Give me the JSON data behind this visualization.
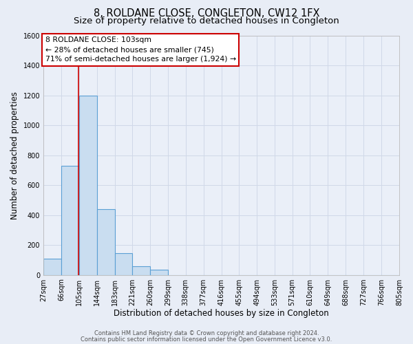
{
  "title": "8, ROLDANE CLOSE, CONGLETON, CW12 1FX",
  "subtitle": "Size of property relative to detached houses in Congleton",
  "xlabel": "Distribution of detached houses by size in Congleton",
  "ylabel": "Number of detached properties",
  "bin_edges": [
    27,
    66,
    105,
    144,
    183,
    221,
    260,
    299,
    338,
    377,
    416,
    455,
    494,
    533,
    571,
    610,
    649,
    688,
    727,
    766,
    805
  ],
  "bin_labels": [
    "27sqm",
    "66sqm",
    "105sqm",
    "144sqm",
    "183sqm",
    "221sqm",
    "260sqm",
    "299sqm",
    "338sqm",
    "377sqm",
    "416sqm",
    "455sqm",
    "494sqm",
    "533sqm",
    "571sqm",
    "610sqm",
    "649sqm",
    "688sqm",
    "727sqm",
    "766sqm",
    "805sqm"
  ],
  "bar_heights": [
    110,
    730,
    1200,
    440,
    145,
    60,
    35,
    0,
    0,
    0,
    0,
    0,
    0,
    0,
    0,
    0,
    0,
    0,
    0,
    0
  ],
  "bar_color": "#c9ddf0",
  "bar_edge_color": "#5a9fd4",
  "property_line_x": 103,
  "property_line_color": "#cc0000",
  "annotation_line1": "8 ROLDANE CLOSE: 103sqm",
  "annotation_line2": "← 28% of detached houses are smaller (745)",
  "annotation_line3": "71% of semi-detached houses are larger (1,924) →",
  "ylim": [
    0,
    1600
  ],
  "yticks": [
    0,
    200,
    400,
    600,
    800,
    1000,
    1200,
    1400,
    1600
  ],
  "footer_line1": "Contains HM Land Registry data © Crown copyright and database right 2024.",
  "footer_line2": "Contains public sector information licensed under the Open Government Licence v3.0.",
  "bg_color": "#e8edf6",
  "plot_bg_color": "#eaeff8",
  "grid_color": "#d0d8e8",
  "title_fontsize": 10.5,
  "subtitle_fontsize": 9.5,
  "label_fontsize": 8.5,
  "tick_fontsize": 7,
  "footer_fontsize": 6
}
